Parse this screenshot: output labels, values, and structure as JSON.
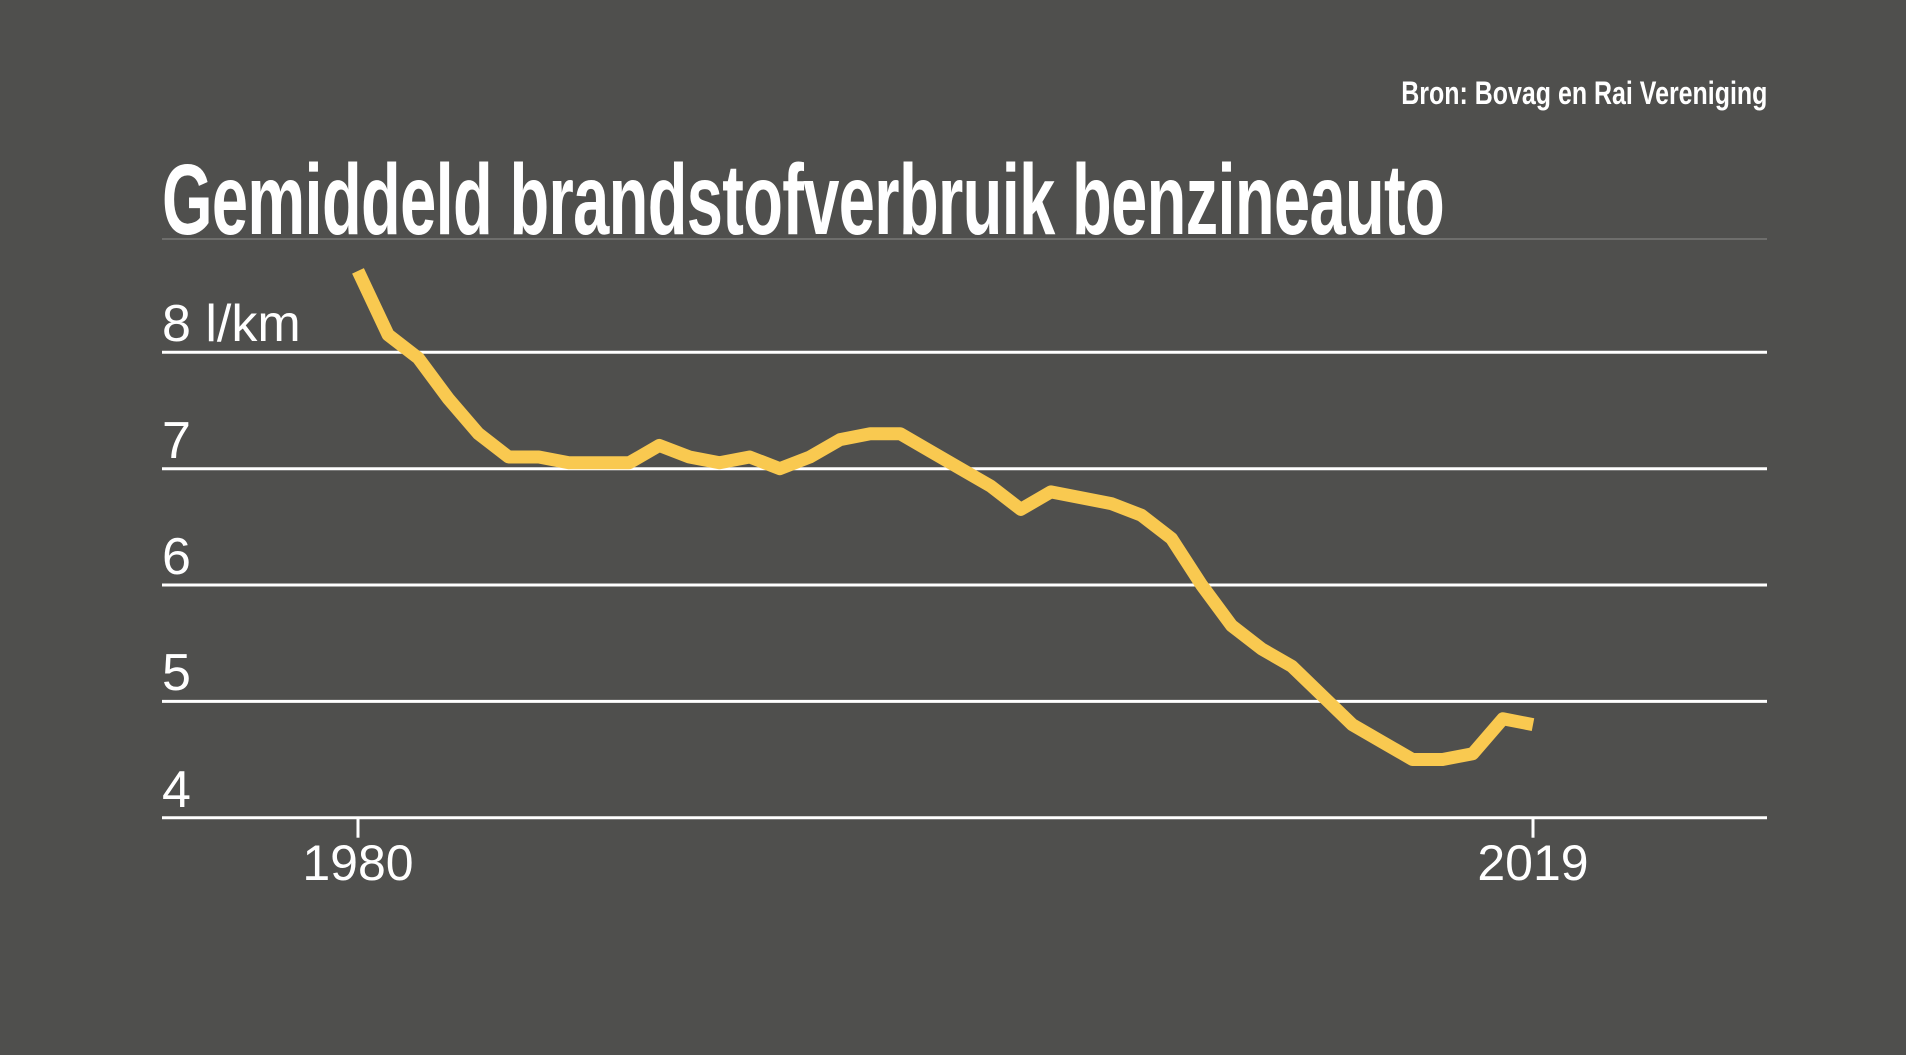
{
  "header": {
    "title": "Gemiddeld brandstofverbruik benzineauto",
    "source": "Bron: Bovag en Rai Vereniging"
  },
  "colors": {
    "background": "#4f4f4d",
    "line": "#f9c950",
    "grid": "#ffffff",
    "text": "#ffffff",
    "rule": "#6e6e6c"
  },
  "chart_data": {
    "type": "line",
    "title": "Gemiddeld brandstofverbruik benzineauto",
    "source": "Bron: Bovag en Rai Vereniging",
    "unit": "l/km",
    "grid": true,
    "legend": false,
    "xlim": [
      1980,
      2019
    ],
    "ylim": [
      4,
      8.8
    ],
    "x": [
      1980,
      1981,
      1982,
      1983,
      1984,
      1985,
      1986,
      1987,
      1988,
      1989,
      1990,
      1991,
      1992,
      1993,
      1994,
      1995,
      1996,
      1997,
      1998,
      1999,
      2000,
      2001,
      2002,
      2003,
      2004,
      2005,
      2006,
      2007,
      2008,
      2009,
      2010,
      2011,
      2012,
      2013,
      2014,
      2015,
      2016,
      2017,
      2018,
      2019
    ],
    "values": [
      8.7,
      8.15,
      7.95,
      7.6,
      7.3,
      7.1,
      7.1,
      7.05,
      7.05,
      7.05,
      7.2,
      7.1,
      7.05,
      7.1,
      7.0,
      7.1,
      7.25,
      7.3,
      7.3,
      7.15,
      7.0,
      6.85,
      6.65,
      6.8,
      6.75,
      6.7,
      6.6,
      6.4,
      6.0,
      5.65,
      5.45,
      5.3,
      5.05,
      4.8,
      4.65,
      4.5,
      4.5,
      4.55,
      4.85,
      4.8
    ],
    "yticks": [
      {
        "value": 8,
        "label": "8 l/km"
      },
      {
        "value": 7,
        "label": "7"
      },
      {
        "value": 6,
        "label": "6"
      },
      {
        "value": 5,
        "label": "5"
      },
      {
        "value": 4,
        "label": "4"
      }
    ],
    "xticks": [
      {
        "value": 1980,
        "label": "1980"
      },
      {
        "value": 2019,
        "label": "2019"
      }
    ]
  }
}
